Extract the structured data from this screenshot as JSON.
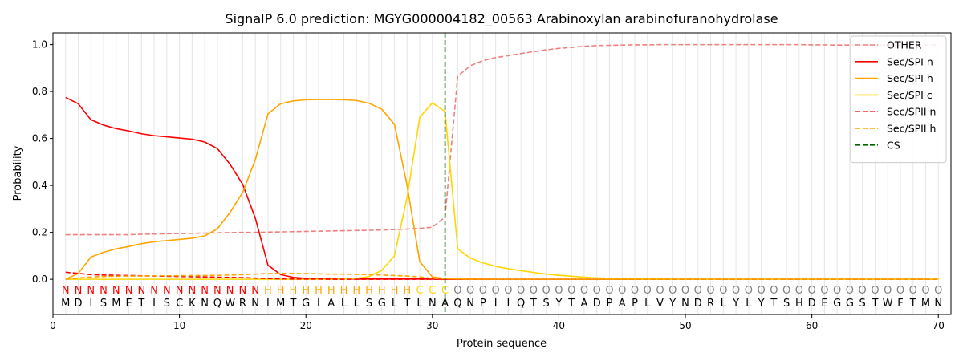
{
  "chart_data": {
    "type": "line",
    "title": "SignalP 6.0 prediction: MGYG000004182_00563 Arabinoxylan arabinofuranohydrolase",
    "xlabel": "Protein sequence",
    "ylabel": "Probability",
    "xlim": [
      0,
      71
    ],
    "ylim": [
      -0.15,
      1.05
    ],
    "xticks": [
      0,
      10,
      20,
      30,
      40,
      50,
      60,
      70
    ],
    "yticks": [
      0.0,
      0.2,
      0.4,
      0.6,
      0.8,
      1.0
    ],
    "ytick_labels": [
      "0.0",
      "0.2",
      "0.4",
      "0.6",
      "0.8",
      "1.0"
    ],
    "grid": "vertical lines at each residue",
    "legend_position": "top-right",
    "sequence": [
      "M",
      "D",
      "I",
      "S",
      "M",
      "E",
      "T",
      "I",
      "S",
      "C",
      "K",
      "N",
      "Q",
      "W",
      "R",
      "N",
      "I",
      "M",
      "T",
      "G",
      "I",
      "A",
      "L",
      "L",
      "S",
      "G",
      "L",
      "T",
      "L",
      "N",
      "A",
      "Q",
      "N",
      "P",
      "I",
      "I",
      "Q",
      "T",
      "S",
      "Y",
      "T",
      "A",
      "D",
      "P",
      "A",
      "P",
      "L",
      "V",
      "Y",
      "N",
      "D",
      "R",
      "L",
      "Y",
      "L",
      "Y",
      "T",
      "S",
      "H",
      "D",
      "E",
      "G",
      "G",
      "S",
      "T",
      "W",
      "F",
      "T",
      "M",
      "N"
    ],
    "region_labels": [
      "N",
      "N",
      "N",
      "N",
      "N",
      "N",
      "N",
      "N",
      "N",
      "N",
      "N",
      "N",
      "N",
      "N",
      "N",
      "N",
      "H",
      "H",
      "H",
      "H",
      "H",
      "H",
      "H",
      "H",
      "H",
      "H",
      "H",
      "H",
      "C",
      "C",
      "C",
      "O",
      "O",
      "O",
      "O",
      "O",
      "O",
      "O",
      "O",
      "O",
      "O",
      "O",
      "O",
      "O",
      "O",
      "O",
      "O",
      "O",
      "O",
      "O",
      "O",
      "O",
      "O",
      "O",
      "O",
      "O",
      "O",
      "O",
      "O",
      "O",
      "O",
      "O",
      "O",
      "O",
      "O",
      "O",
      "O",
      "O",
      "O",
      "O"
    ],
    "region_colors": {
      "N": "#ff0000",
      "H": "#ffa500",
      "C": "#ffd700",
      "O": "#808080"
    },
    "series": [
      {
        "name": "OTHER",
        "color": "#f08080",
        "dash": "dashed",
        "values": [
          0.19,
          0.19,
          0.19,
          0.19,
          0.19,
          0.19,
          0.192,
          0.193,
          0.194,
          0.195,
          0.196,
          0.197,
          0.198,
          0.199,
          0.2,
          0.2,
          0.201,
          0.202,
          0.203,
          0.204,
          0.205,
          0.206,
          0.207,
          0.208,
          0.209,
          0.21,
          0.212,
          0.214,
          0.217,
          0.222,
          0.265,
          0.865,
          0.91,
          0.932,
          0.945,
          0.953,
          0.962,
          0.97,
          0.978,
          0.984,
          0.988,
          0.993,
          0.996,
          0.997,
          0.998,
          0.999,
          0.999,
          1.0,
          1.0,
          1.0,
          1.0,
          1.0,
          1.0,
          1.0,
          1.0,
          1.0,
          1.0,
          1.0,
          1.0,
          0.999,
          0.999,
          0.998,
          0.998,
          0.998,
          0.998,
          0.998,
          0.998,
          0.998,
          0.998,
          0.998
        ]
      },
      {
        "name": "Sec/SPI n",
        "color": "#ff0000",
        "dash": "solid",
        "values": [
          0.775,
          0.748,
          0.68,
          0.657,
          0.642,
          0.632,
          0.62,
          0.612,
          0.607,
          0.602,
          0.597,
          0.585,
          0.557,
          0.49,
          0.405,
          0.26,
          0.06,
          0.02,
          0.008,
          0.004,
          0.003,
          0.002,
          0.002,
          0.001,
          0.001,
          0.001,
          0.001,
          0.001,
          0.001,
          0.001,
          0.0,
          0.0,
          0.0,
          0.0,
          0.0,
          0.0,
          0.0,
          0.0,
          0.0,
          0.0,
          0.0,
          0.0,
          0.0,
          0.0,
          0.0,
          0.0,
          0.0,
          0.0,
          0.0,
          0.0,
          0.0,
          0.0,
          0.0,
          0.0,
          0.0,
          0.0,
          0.0,
          0.0,
          0.0,
          0.0,
          0.0,
          0.0,
          0.0,
          0.0,
          0.0,
          0.0,
          0.0,
          0.0,
          0.0,
          0.0
        ]
      },
      {
        "name": "Sec/SPI h",
        "color": "#ffa500",
        "dash": "solid",
        "values": [
          0.0,
          0.025,
          0.095,
          0.115,
          0.13,
          0.14,
          0.152,
          0.16,
          0.165,
          0.17,
          0.175,
          0.185,
          0.215,
          0.285,
          0.37,
          0.51,
          0.705,
          0.748,
          0.76,
          0.765,
          0.766,
          0.766,
          0.765,
          0.762,
          0.75,
          0.725,
          0.66,
          0.4,
          0.075,
          0.01,
          0.003,
          0.002,
          0.001,
          0.001,
          0.0,
          0.0,
          0.0,
          0.0,
          0.0,
          0.0,
          0.0,
          0.0,
          0.0,
          0.0,
          0.0,
          0.0,
          0.0,
          0.0,
          0.0,
          0.0,
          0.0,
          0.0,
          0.0,
          0.0,
          0.0,
          0.0,
          0.0,
          0.0,
          0.0,
          0.0,
          0.0,
          0.0,
          0.0,
          0.0,
          0.0,
          0.0,
          0.0,
          0.0,
          0.0,
          0.0
        ]
      },
      {
        "name": "Sec/SPI c",
        "color": "#ffd700",
        "dash": "solid",
        "values": [
          0.0,
          0.0,
          0.0,
          0.0,
          0.0,
          0.0,
          0.0,
          0.0,
          0.0,
          0.0,
          0.0,
          0.0,
          0.0,
          0.0,
          0.0,
          0.0,
          0.0,
          0.0,
          0.0,
          0.0,
          0.0,
          0.0,
          0.001,
          0.004,
          0.012,
          0.038,
          0.1,
          0.35,
          0.69,
          0.752,
          0.715,
          0.13,
          0.09,
          0.07,
          0.055,
          0.045,
          0.037,
          0.029,
          0.022,
          0.017,
          0.013,
          0.009,
          0.006,
          0.004,
          0.003,
          0.002,
          0.001,
          0.001,
          0.0,
          0.0,
          0.0,
          0.0,
          0.0,
          0.0,
          0.0,
          0.0,
          0.0,
          0.0,
          0.0,
          0.0,
          0.0,
          0.0,
          0.0,
          0.0,
          0.0,
          0.0,
          0.0,
          0.0,
          0.0,
          0.0
        ]
      },
      {
        "name": "Sec/SPII n",
        "color": "#ff0000",
        "dash": "dashed",
        "values": [
          0.03,
          0.025,
          0.02,
          0.018,
          0.017,
          0.016,
          0.015,
          0.014,
          0.013,
          0.012,
          0.011,
          0.01,
          0.009,
          0.008,
          0.007,
          0.005,
          0.003,
          0.002,
          0.001,
          0.001,
          0.001,
          0.0,
          0.0,
          0.0,
          0.0,
          0.0,
          0.0,
          0.0,
          0.0,
          0.0,
          0.0,
          0.0,
          0.0,
          0.0,
          0.0,
          0.0,
          0.0,
          0.0,
          0.0,
          0.0,
          0.0,
          0.0,
          0.0,
          0.0,
          0.0,
          0.0,
          0.0,
          0.0,
          0.0,
          0.0,
          0.0,
          0.0,
          0.0,
          0.0,
          0.0,
          0.0,
          0.0,
          0.0,
          0.0,
          0.0,
          0.0,
          0.0,
          0.0,
          0.0,
          0.0,
          0.0,
          0.0,
          0.0,
          0.0,
          0.0
        ]
      },
      {
        "name": "Sec/SPII h",
        "color": "#ffa500",
        "dash": "dashed",
        "values": [
          0.0,
          0.005,
          0.01,
          0.012,
          0.013,
          0.014,
          0.014,
          0.015,
          0.015,
          0.015,
          0.016,
          0.016,
          0.017,
          0.018,
          0.02,
          0.022,
          0.024,
          0.025,
          0.025,
          0.024,
          0.023,
          0.022,
          0.022,
          0.021,
          0.02,
          0.018,
          0.016,
          0.014,
          0.01,
          0.004,
          0.002,
          0.001,
          0.0,
          0.0,
          0.0,
          0.0,
          0.0,
          0.0,
          0.0,
          0.0,
          0.0,
          0.0,
          0.0,
          0.0,
          0.0,
          0.0,
          0.0,
          0.0,
          0.0,
          0.0,
          0.0,
          0.0,
          0.0,
          0.0,
          0.0,
          0.0,
          0.0,
          0.0,
          0.0,
          0.0,
          0.0,
          0.0,
          0.0,
          0.0,
          0.0,
          0.0,
          0.0,
          0.0,
          0.0,
          0.0
        ]
      }
    ],
    "cs_marker": {
      "name": "CS",
      "x": 31,
      "color": "#006400",
      "dash": "dashed"
    }
  }
}
